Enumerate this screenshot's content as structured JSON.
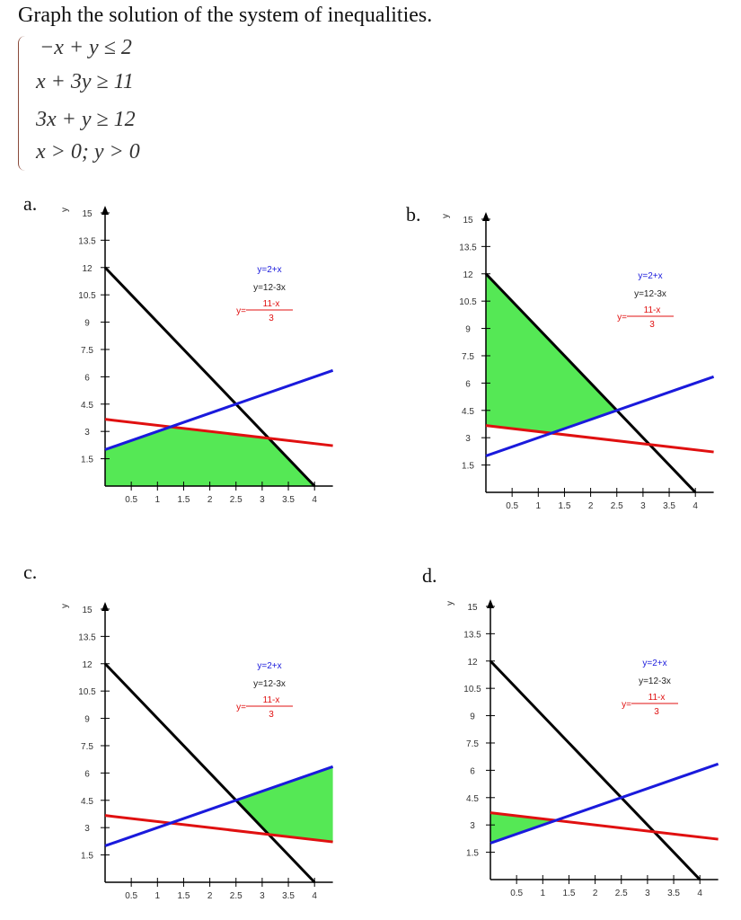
{
  "question": {
    "title": "Graph the solution of the system of inequalities.",
    "inequalities": [
      "−x + y ≤ 2",
      "x + 3y ≥ 11",
      "3x + y ≥ 12",
      "x > 0; y > 0"
    ]
  },
  "colors": {
    "blue_line": "#1a1adc",
    "black_line": "#000000",
    "red_line": "#e01010",
    "shading": "#55e855"
  },
  "chart_data": [
    {
      "option": "a.",
      "type": "line",
      "ylabel": "y",
      "xlim": [
        0,
        4.35
      ],
      "ylim": [
        0,
        15
      ],
      "xticks": [
        "0.5",
        "1",
        "1.5",
        "2",
        "2.5",
        "3",
        "3.5",
        "4"
      ],
      "yticks": [
        "1.5",
        "3",
        "4.5",
        "6",
        "7.5",
        "9",
        "10.5",
        "12",
        "13.5",
        "15"
      ],
      "legend": {
        "blue": "y=2+x",
        "black": "y=12-3x",
        "red_prefix": "y=",
        "red_num": "11-x",
        "red_den": "3"
      },
      "shaded_region": [
        [
          0,
          0
        ],
        [
          0,
          2
        ],
        [
          1.25,
          3.25
        ],
        [
          3.125,
          2.625
        ],
        [
          4,
          0
        ]
      ]
    },
    {
      "option": "b.",
      "type": "line",
      "ylabel": "y",
      "xlim": [
        0,
        4.35
      ],
      "ylim": [
        0,
        15
      ],
      "xticks": [
        "0.5",
        "1",
        "1.5",
        "2",
        "2.5",
        "3",
        "3.5",
        "4"
      ],
      "yticks": [
        "1.5",
        "3",
        "4.5",
        "6",
        "7.5",
        "9",
        "10.5",
        "12",
        "13.5",
        "15"
      ],
      "legend": {
        "blue": "y=2+x",
        "black": "y=12-3x",
        "red_prefix": "y=",
        "red_num": "11-x",
        "red_den": "3"
      },
      "shaded_region": [
        [
          0,
          12
        ],
        [
          0,
          3.667
        ],
        [
          1.25,
          3.25
        ],
        [
          2.5,
          4.5
        ]
      ]
    },
    {
      "option": "c.",
      "type": "line",
      "ylabel": "y",
      "xlim": [
        0,
        4.35
      ],
      "ylim": [
        0,
        15
      ],
      "xticks": [
        "0.5",
        "1",
        "1.5",
        "2",
        "2.5",
        "3",
        "3.5",
        "4"
      ],
      "yticks": [
        "1.5",
        "3",
        "4.5",
        "6",
        "7.5",
        "9",
        "10.5",
        "12",
        "13.5",
        "15"
      ],
      "legend": {
        "blue": "y=2+x",
        "black": "y=12-3x",
        "red_prefix": "y=",
        "red_num": "11-x",
        "red_den": "3"
      },
      "shaded_region": [
        [
          2.5,
          4.5
        ],
        [
          3.125,
          2.625
        ],
        [
          4.35,
          2.217
        ],
        [
          4.35,
          6.35
        ]
      ]
    },
    {
      "option": "d.",
      "type": "line",
      "ylabel": "y",
      "xlim": [
        0,
        4.35
      ],
      "ylim": [
        0,
        15
      ],
      "xticks": [
        "0.5",
        "1",
        "1.5",
        "2",
        "2.5",
        "3",
        "3.5",
        "4"
      ],
      "yticks": [
        "1.5",
        "3",
        "4.5",
        "6",
        "7.5",
        "9",
        "10.5",
        "12",
        "13.5",
        "15"
      ],
      "legend": {
        "blue": "y=2+x",
        "black": "y=12-3x",
        "red_prefix": "y=",
        "red_num": "11-x",
        "red_den": "3"
      },
      "shaded_region": [
        [
          0,
          3.667
        ],
        [
          0,
          2
        ],
        [
          1.25,
          3.25
        ]
      ]
    }
  ]
}
